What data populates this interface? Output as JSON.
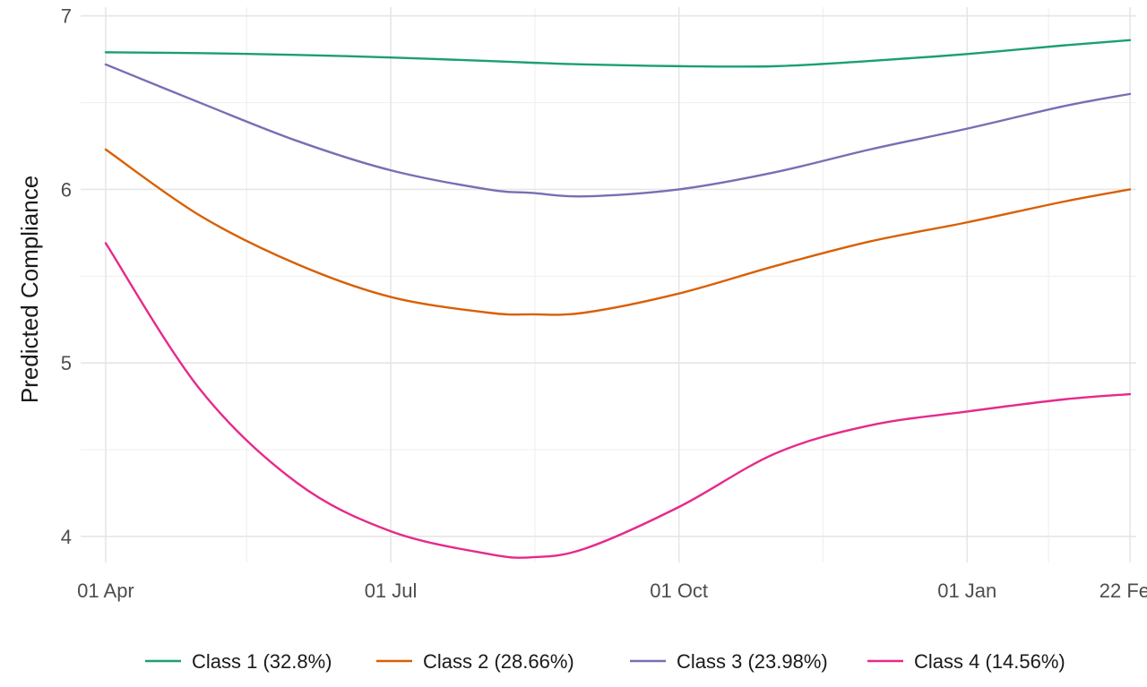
{
  "chart_data": {
    "type": "line",
    "title": "",
    "xlabel": "",
    "ylabel": "Predicted Compliance",
    "x_tick_labels": [
      "01 Apr",
      "01 Jul",
      "01 Oct",
      "01 Jan",
      "22 Feb"
    ],
    "x_tick_dates": [
      "2020-04-01",
      "2020-07-01",
      "2020-10-01",
      "2021-01-01",
      "2021-02-22"
    ],
    "xlim": [
      "2020-03-24",
      "2021-02-24"
    ],
    "y_tick_labels": [
      "4",
      "5",
      "6",
      "7"
    ],
    "y_ticks": [
      4,
      5,
      6,
      7
    ],
    "ylim": [
      3.85,
      7.05
    ],
    "grid": true,
    "legend_position": "bottom",
    "x": [
      "2020-04-01",
      "2020-05-01",
      "2020-06-01",
      "2020-07-01",
      "2020-08-01",
      "2020-08-15",
      "2020-09-01",
      "2020-10-01",
      "2020-11-01",
      "2020-12-01",
      "2021-01-01",
      "2021-02-01",
      "2021-02-22"
    ],
    "series": [
      {
        "name": "Class 1 (32.8%)",
        "color": "#1b9e77",
        "values": [
          6.79,
          6.785,
          6.775,
          6.76,
          6.74,
          6.73,
          6.72,
          6.71,
          6.71,
          6.74,
          6.78,
          6.83,
          6.86
        ]
      },
      {
        "name": "Class 2 (28.66%)",
        "color": "#d95f02",
        "values": [
          6.23,
          5.85,
          5.57,
          5.38,
          5.29,
          5.28,
          5.29,
          5.4,
          5.56,
          5.7,
          5.81,
          5.93,
          6.0
        ]
      },
      {
        "name": "Class 3 (23.98%)",
        "color": "#7570b3",
        "values": [
          6.72,
          6.5,
          6.28,
          6.11,
          6.0,
          5.98,
          5.96,
          6.0,
          6.1,
          6.23,
          6.35,
          6.48,
          6.55
        ]
      },
      {
        "name": "Class 4 (14.56%)",
        "color": "#e7298a",
        "values": [
          5.69,
          4.85,
          4.31,
          4.03,
          3.9,
          3.88,
          3.93,
          4.17,
          4.48,
          4.64,
          4.72,
          4.79,
          4.82
        ]
      }
    ]
  }
}
